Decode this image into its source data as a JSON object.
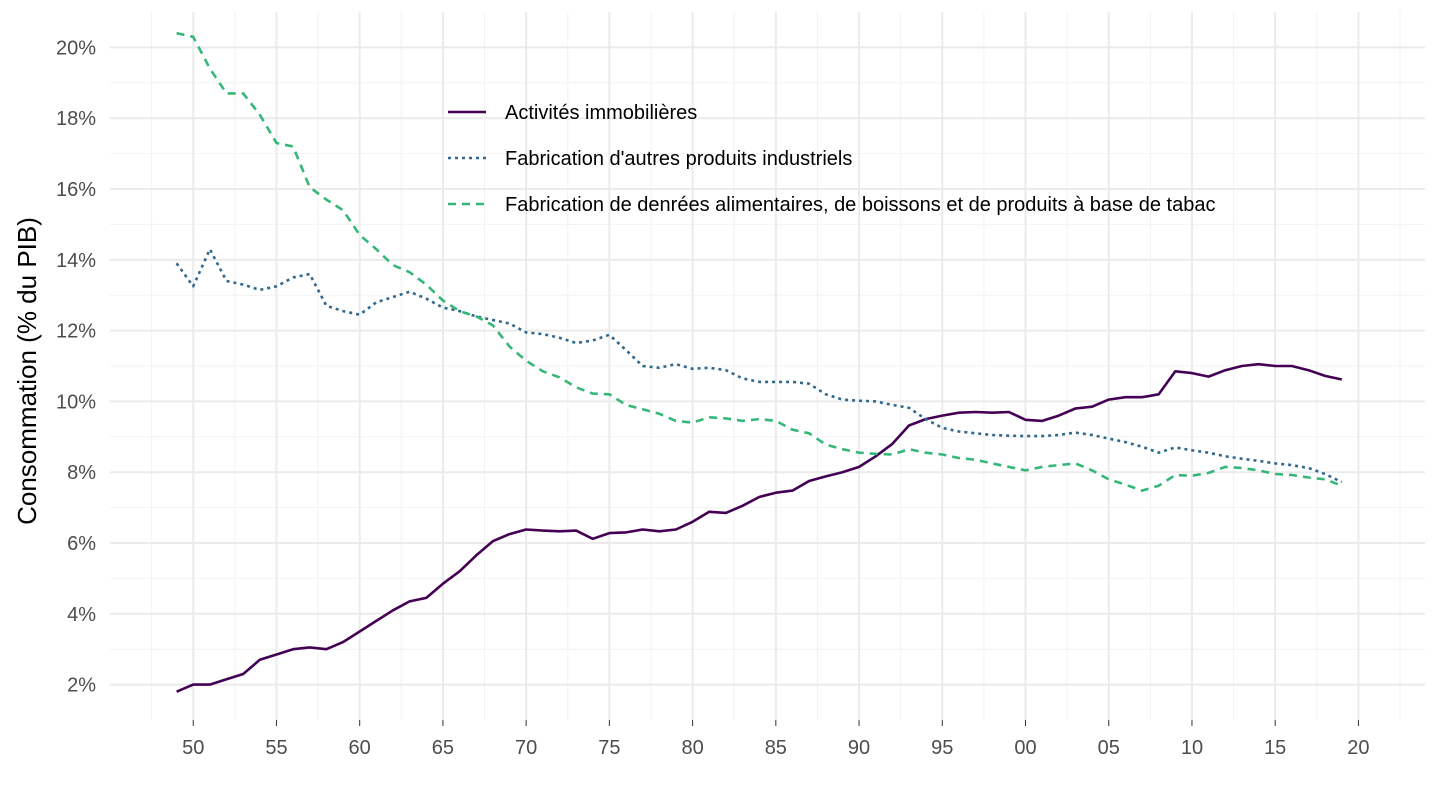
{
  "chart_data": {
    "type": "line",
    "title": "",
    "xlabel": "",
    "ylabel": "Consommation (% du PIB)",
    "xlim": [
      1945,
      2024
    ],
    "ylim": [
      1.0,
      21.0
    ],
    "x_ticks": [
      1950,
      1955,
      1960,
      1965,
      1970,
      1975,
      1980,
      1985,
      1990,
      1995,
      2000,
      2005,
      2010,
      2015,
      2020
    ],
    "x_tick_labels": [
      "50",
      "55",
      "60",
      "65",
      "70",
      "75",
      "80",
      "85",
      "90",
      "95",
      "00",
      "05",
      "10",
      "15",
      "20"
    ],
    "y_ticks": [
      2,
      4,
      6,
      8,
      10,
      12,
      14,
      16,
      18,
      20
    ],
    "y_tick_labels": [
      "2%",
      "4%",
      "6%",
      "8%",
      "10%",
      "12%",
      "14%",
      "16%",
      "18%",
      "20%"
    ],
    "grid": true,
    "legend_position": "top-center",
    "x": [
      1949,
      1950,
      1951,
      1952,
      1953,
      1954,
      1955,
      1956,
      1957,
      1958,
      1959,
      1960,
      1961,
      1962,
      1963,
      1964,
      1965,
      1966,
      1967,
      1968,
      1969,
      1970,
      1971,
      1972,
      1973,
      1974,
      1975,
      1976,
      1977,
      1978,
      1979,
      1980,
      1981,
      1982,
      1983,
      1984,
      1985,
      1986,
      1987,
      1988,
      1989,
      1990,
      1991,
      1992,
      1993,
      1994,
      1995,
      1996,
      1997,
      1998,
      1999,
      2000,
      2001,
      2002,
      2003,
      2004,
      2005,
      2006,
      2007,
      2008,
      2009,
      2010,
      2011,
      2012,
      2013,
      2014,
      2015,
      2016,
      2017,
      2018,
      2019
    ],
    "series": [
      {
        "name": "Activités immobilières",
        "color": "#440154",
        "dash": "solid",
        "values": [
          1.8,
          2.0,
          2.0,
          2.15,
          2.3,
          2.7,
          2.85,
          3.0,
          3.05,
          3.0,
          3.2,
          3.5,
          3.8,
          4.1,
          4.35,
          4.45,
          4.85,
          5.2,
          5.65,
          6.05,
          6.25,
          6.38,
          6.35,
          6.33,
          6.35,
          6.12,
          6.28,
          6.3,
          6.38,
          6.33,
          6.38,
          6.6,
          6.88,
          6.85,
          7.05,
          7.3,
          7.42,
          7.48,
          7.75,
          7.88,
          8.0,
          8.15,
          8.45,
          8.8,
          9.32,
          9.5,
          9.6,
          9.68,
          9.7,
          9.68,
          9.7,
          9.48,
          9.45,
          9.6,
          9.8,
          9.85,
          10.05,
          10.12,
          10.12,
          10.2,
          10.85,
          10.8,
          10.7,
          10.88,
          11.0,
          11.05,
          11.0,
          11.0,
          10.88,
          10.72,
          10.62
        ]
      },
      {
        "name": "Fabrication d'autres produits industriels",
        "color": "#31688e",
        "dash": "dotted",
        "values": [
          13.9,
          13.25,
          14.3,
          13.4,
          13.3,
          13.15,
          13.25,
          13.5,
          13.6,
          12.7,
          12.55,
          12.45,
          12.8,
          12.95,
          13.1,
          12.9,
          12.65,
          12.55,
          12.4,
          12.3,
          12.2,
          11.95,
          11.9,
          11.8,
          11.65,
          11.72,
          11.88,
          11.45,
          11.0,
          10.95,
          11.05,
          10.92,
          10.95,
          10.88,
          10.65,
          10.55,
          10.55,
          10.55,
          10.5,
          10.2,
          10.05,
          10.02,
          10.0,
          9.9,
          9.82,
          9.5,
          9.25,
          9.15,
          9.1,
          9.05,
          9.03,
          9.02,
          9.02,
          9.05,
          9.12,
          9.05,
          8.95,
          8.85,
          8.72,
          8.55,
          8.7,
          8.62,
          8.55,
          8.45,
          8.38,
          8.32,
          8.25,
          8.2,
          8.12,
          7.95,
          7.72
        ]
      },
      {
        "name": "Fabrication de denrées alimentaires, de boissons et de produits à base de tabac",
        "color": "#35b779",
        "dash": "dashed",
        "values": [
          20.4,
          20.3,
          19.4,
          18.7,
          18.7,
          18.1,
          17.3,
          17.2,
          16.05,
          15.7,
          15.4,
          14.7,
          14.3,
          13.85,
          13.65,
          13.3,
          12.85,
          12.55,
          12.4,
          12.15,
          11.55,
          11.15,
          10.85,
          10.68,
          10.4,
          10.22,
          10.2,
          9.9,
          9.78,
          9.65,
          9.45,
          9.4,
          9.55,
          9.52,
          9.45,
          9.5,
          9.45,
          9.2,
          9.1,
          8.78,
          8.65,
          8.55,
          8.52,
          8.5,
          8.65,
          8.55,
          8.5,
          8.4,
          8.35,
          8.25,
          8.15,
          8.05,
          8.15,
          8.2,
          8.25,
          8.05,
          7.8,
          7.65,
          7.48,
          7.62,
          7.92,
          7.9,
          7.98,
          8.15,
          8.12,
          8.05,
          7.95,
          7.92,
          7.85,
          7.8,
          7.62
        ]
      }
    ]
  }
}
